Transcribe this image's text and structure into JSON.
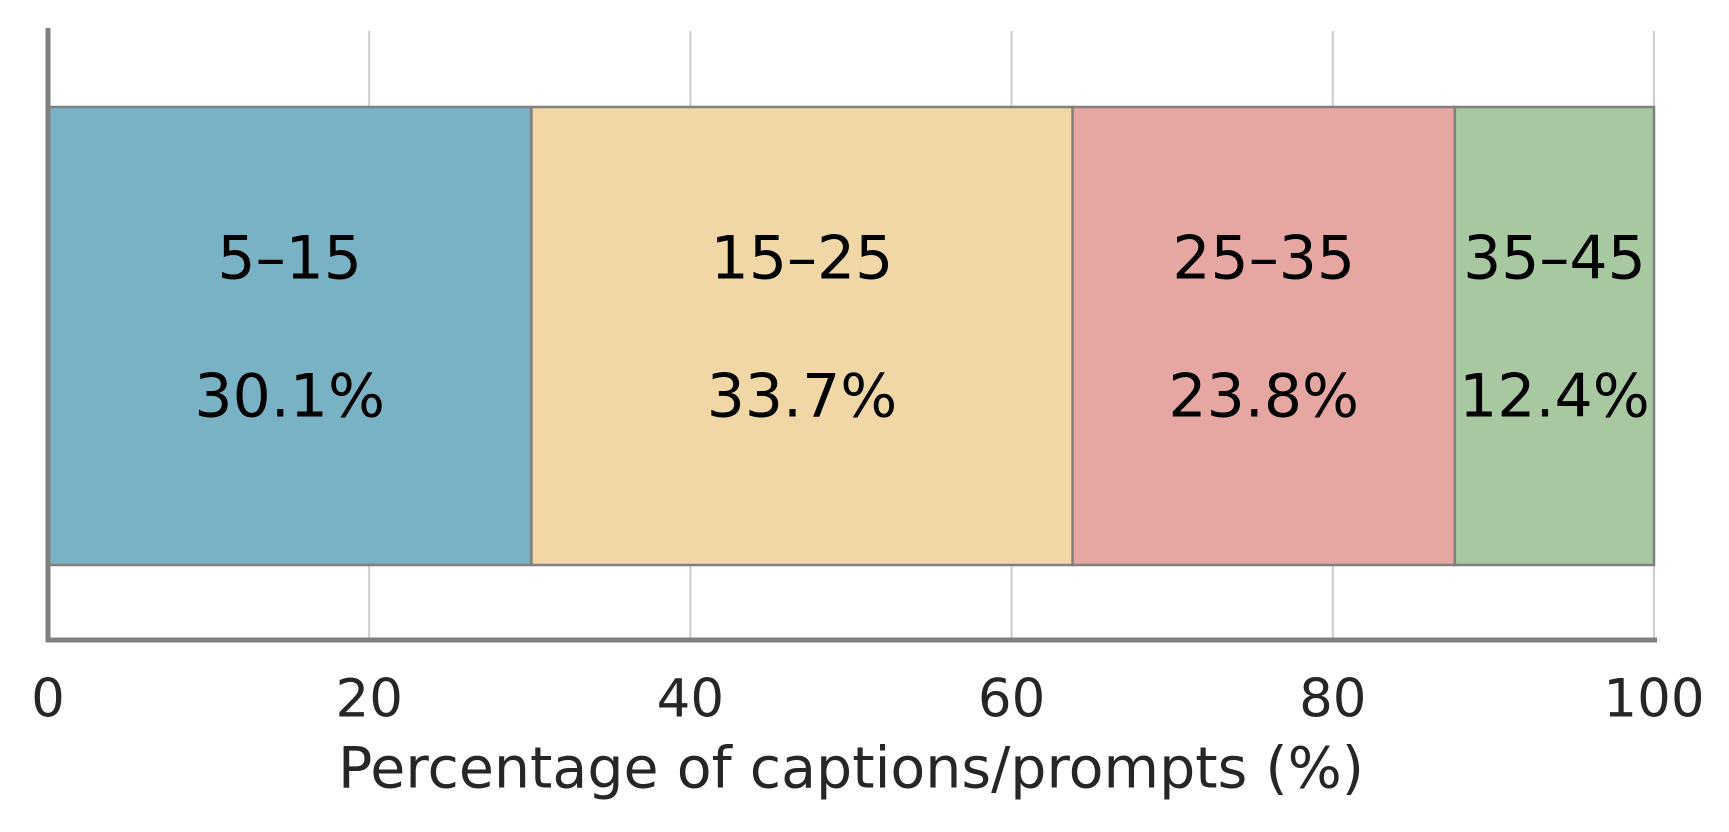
{
  "chart_data": {
    "type": "stacked-bar",
    "orientation": "horizontal",
    "categories": [
      null
    ],
    "series": [
      {
        "name": "5–15",
        "color": "#79b1c5",
        "values": [
          30.1
        ],
        "value_labels": [
          "30.1%"
        ]
      },
      {
        "name": "15–25",
        "color": "#f1d7a6",
        "values": [
          33.7
        ],
        "value_labels": [
          "33.7%"
        ]
      },
      {
        "name": "25–35",
        "color": "#e6a6a1",
        "values": [
          23.8
        ],
        "value_labels": [
          "23.8%"
        ]
      },
      {
        "name": "35–45",
        "color": "#a8c8a1",
        "values": [
          12.4
        ],
        "value_labels": [
          "12.4%"
        ]
      }
    ],
    "xlabel": "Percentage of captions/prompts (%)",
    "xlim": [
      0,
      100
    ],
    "xticks": [
      0,
      20,
      40,
      60,
      80,
      100
    ],
    "grid": true
  }
}
